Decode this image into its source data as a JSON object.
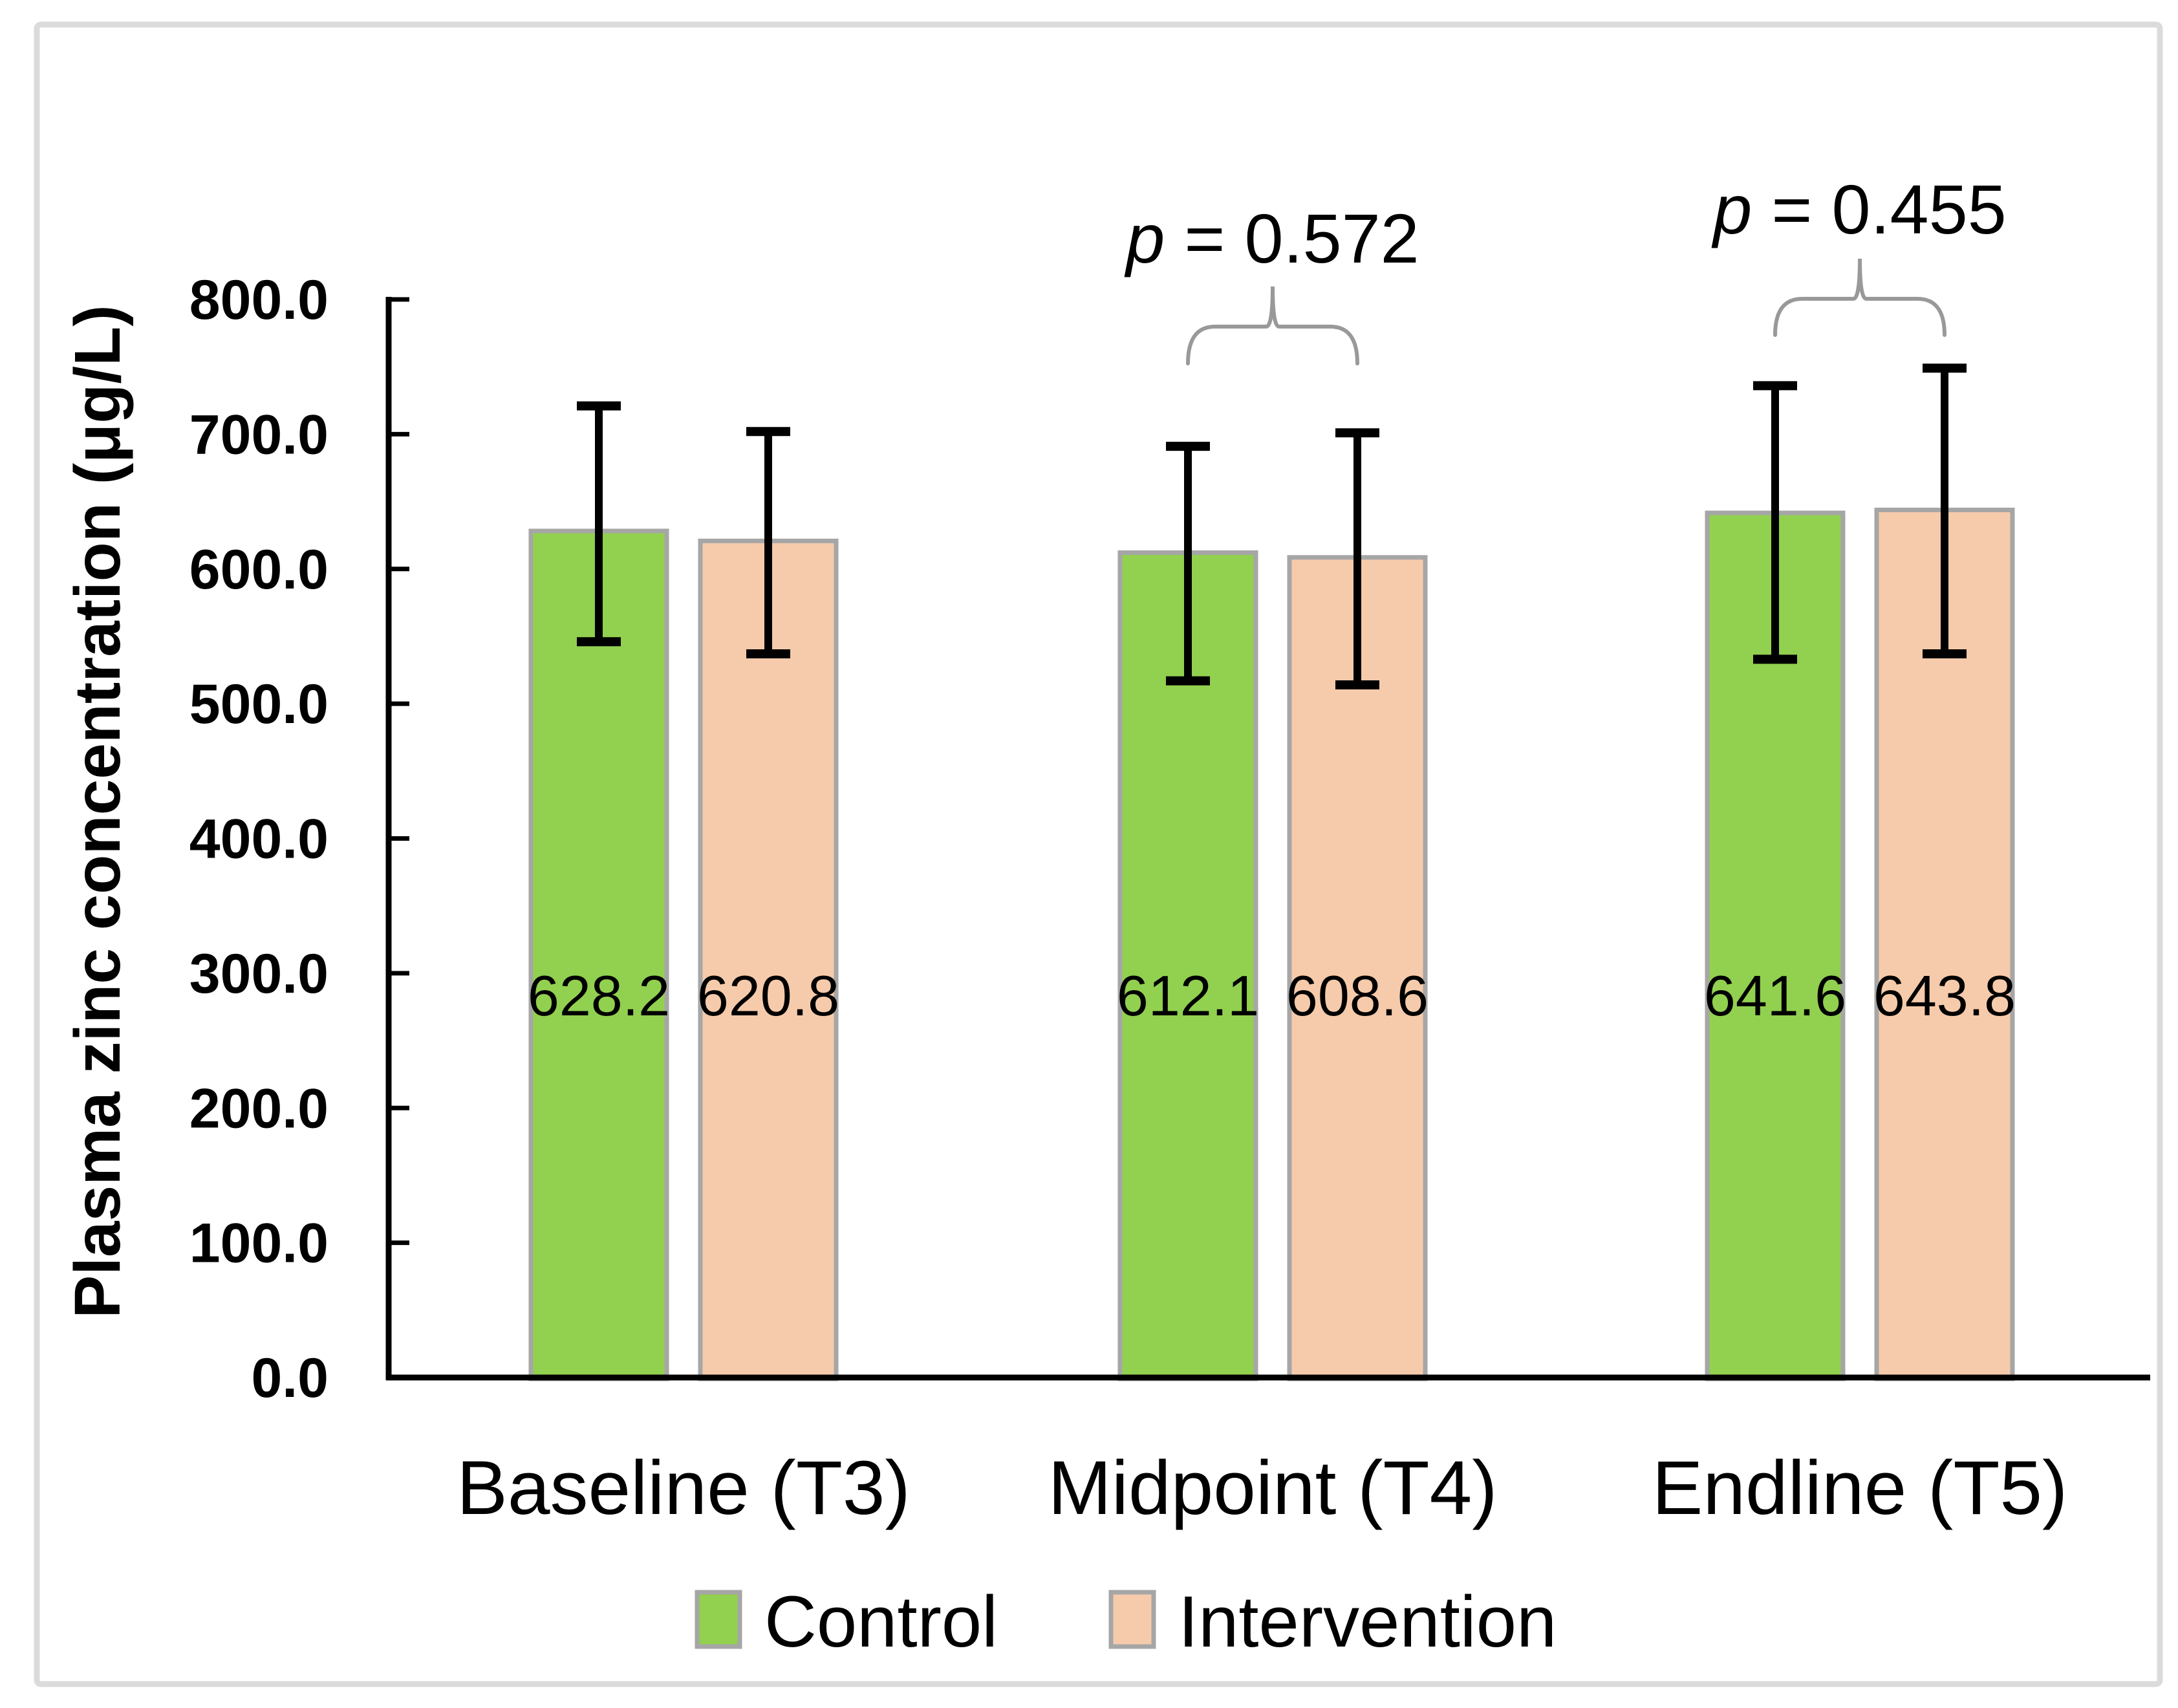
{
  "chart_data": {
    "type": "bar",
    "title": "",
    "ylabel": "Plasma zinc concentration (μg/L)",
    "xlabel": "",
    "ylim": [
      0,
      800
    ],
    "grid": false,
    "legend_position": "bottom",
    "ytick_values": [
      800,
      700,
      600,
      500,
      400,
      300,
      200,
      100,
      0
    ],
    "ytick_labels": [
      "800.0",
      "700.0",
      "600.0",
      "500.0",
      "400.0",
      "300.0",
      "200.0",
      "100.0",
      "0.0"
    ],
    "categories": [
      "Baseline (T3)",
      "Midpoint (T4)",
      "Endline (T5)"
    ],
    "series": [
      {
        "name": "Control",
        "color": "#92D050",
        "values": [
          628.2,
          612.1,
          641.6
        ],
        "value_labels": [
          "628.2",
          "612.1",
          "641.6"
        ],
        "err_low": [
          546,
          517,
          533
        ],
        "err_high": [
          721,
          691,
          736
        ]
      },
      {
        "name": "Intervention",
        "color": "#F6CBAB",
        "values": [
          620.8,
          608.6,
          643.8
        ],
        "value_labels": [
          "620.8",
          "608.6",
          "643.8"
        ],
        "err_low": [
          537,
          514,
          537
        ],
        "err_high": [
          702,
          701,
          749
        ]
      }
    ],
    "annotations": [
      {
        "text_italic": "p",
        "text_rest": " = 0.572",
        "category_index": 1
      },
      {
        "text_italic": "p",
        "text_rest": " = 0.455",
        "category_index": 2
      }
    ],
    "colors": {
      "bar_border": "#A6A6A6",
      "axis": "#000000",
      "brace": "#999999",
      "frame_border": "#DBDBDB",
      "background": "#FFFFFF"
    }
  }
}
